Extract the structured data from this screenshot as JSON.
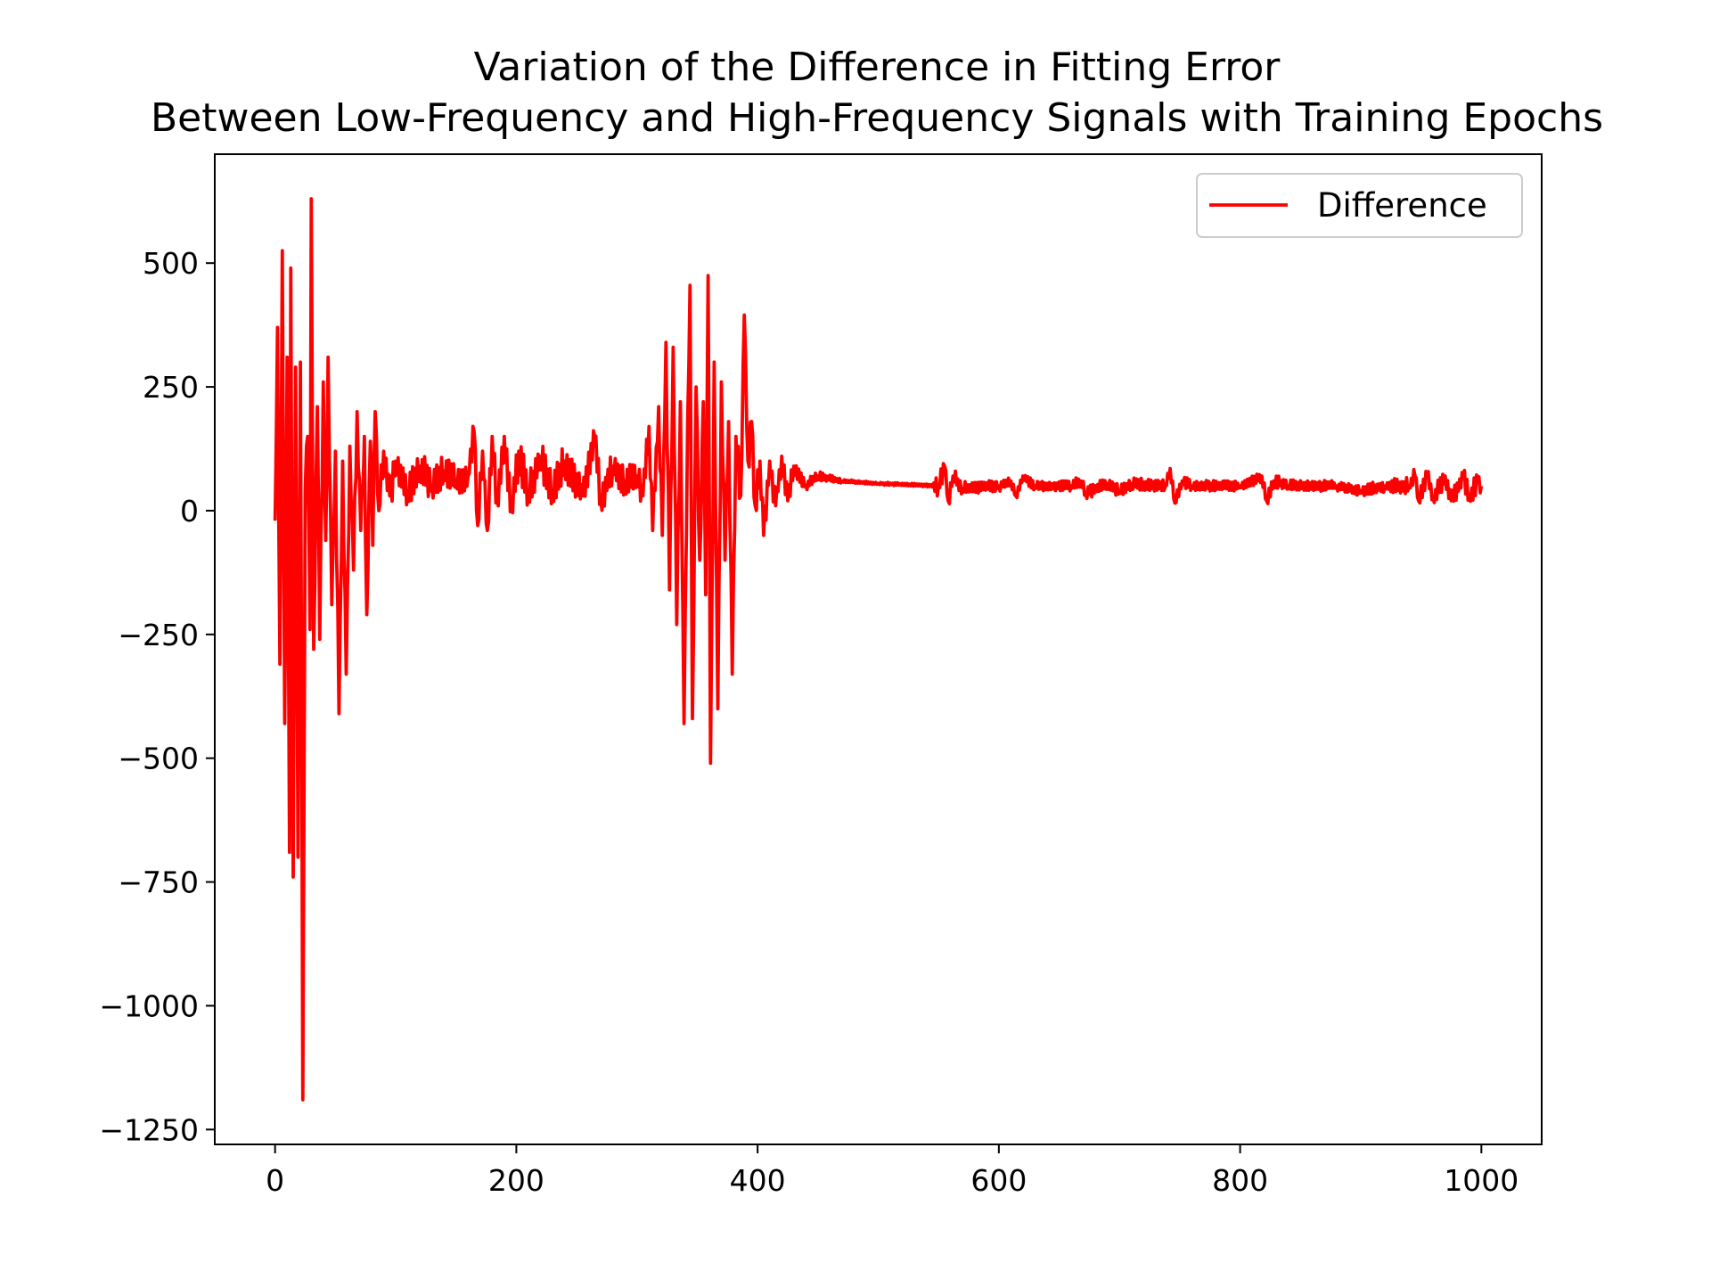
{
  "chart_data": {
    "type": "line",
    "title": [
      "Variation of the Difference in Fitting Error",
      "Between Low-Frequency and High-Frequency Signals with Training Epochs"
    ],
    "xlabel": "",
    "ylabel": "",
    "xlim": [
      -50,
      1050
    ],
    "ylim": [
      -1280,
      720
    ],
    "xticks": [
      0,
      200,
      400,
      600,
      800,
      1000
    ],
    "yticks": [
      -1250,
      -1000,
      -750,
      -500,
      -250,
      0,
      250,
      500
    ],
    "xtick_labels": [
      "0",
      "200",
      "400",
      "600",
      "800",
      "1000"
    ],
    "ytick_labels": [
      "−1250",
      "−1000",
      "−750",
      "−500",
      "−250",
      "0",
      "250",
      "500"
    ],
    "grid": false,
    "legend": {
      "location": "upper right",
      "entries": [
        "Difference"
      ]
    },
    "series": [
      {
        "name": "Difference",
        "color": "#ff0000",
        "key_points": [
          [
            0,
            -20
          ],
          [
            2,
            370
          ],
          [
            4,
            -310
          ],
          [
            6,
            525
          ],
          [
            8,
            -430
          ],
          [
            10,
            310
          ],
          [
            12,
            -690
          ],
          [
            13,
            490
          ],
          [
            15,
            -740
          ],
          [
            17,
            290
          ],
          [
            19,
            -700
          ],
          [
            21,
            300
          ],
          [
            23,
            -1190
          ],
          [
            25,
            40
          ],
          [
            27,
            150
          ],
          [
            29,
            -240
          ],
          [
            30,
            630
          ],
          [
            32,
            -280
          ],
          [
            35,
            210
          ],
          [
            37,
            -260
          ],
          [
            40,
            260
          ],
          [
            42,
            -60
          ],
          [
            44,
            310
          ],
          [
            47,
            -190
          ],
          [
            50,
            120
          ],
          [
            53,
            -410
          ],
          [
            56,
            100
          ],
          [
            59,
            -330
          ],
          [
            62,
            130
          ],
          [
            65,
            -120
          ],
          [
            68,
            200
          ],
          [
            71,
            -40
          ],
          [
            74,
            150
          ],
          [
            76,
            -210
          ],
          [
            79,
            140
          ],
          [
            81,
            -70
          ],
          [
            83,
            200
          ],
          [
            86,
            0
          ],
          [
            90,
            120
          ],
          [
            95,
            30
          ],
          [
            100,
            100
          ],
          [
            110,
            40
          ],
          [
            120,
            90
          ],
          [
            130,
            50
          ],
          [
            140,
            80
          ],
          [
            150,
            60
          ],
          [
            160,
            70
          ],
          [
            165,
            160
          ],
          [
            168,
            -30
          ],
          [
            172,
            120
          ],
          [
            176,
            -40
          ],
          [
            180,
            150
          ],
          [
            184,
            20
          ],
          [
            190,
            150
          ],
          [
            196,
            0
          ],
          [
            202,
            120
          ],
          [
            210,
            30
          ],
          [
            220,
            110
          ],
          [
            230,
            30
          ],
          [
            240,
            100
          ],
          [
            255,
            30
          ],
          [
            265,
            150
          ],
          [
            270,
            20
          ],
          [
            280,
            90
          ],
          [
            290,
            60
          ],
          [
            300,
            70
          ],
          [
            305,
            30
          ],
          [
            310,
            170
          ],
          [
            313,
            -40
          ],
          [
            318,
            210
          ],
          [
            321,
            -50
          ],
          [
            324,
            340
          ],
          [
            327,
            -160
          ],
          [
            330,
            330
          ],
          [
            333,
            -230
          ],
          [
            336,
            220
          ],
          [
            339,
            -430
          ],
          [
            342,
            180
          ],
          [
            344,
            455
          ],
          [
            346,
            -420
          ],
          [
            349,
            250
          ],
          [
            352,
            -100
          ],
          [
            355,
            220
          ],
          [
            357,
            -170
          ],
          [
            359,
            475
          ],
          [
            361,
            -510
          ],
          [
            364,
            300
          ],
          [
            367,
            -400
          ],
          [
            370,
            260
          ],
          [
            373,
            -100
          ],
          [
            376,
            180
          ],
          [
            379,
            -330
          ],
          [
            382,
            150
          ],
          [
            386,
            30
          ],
          [
            389,
            395
          ],
          [
            392,
            100
          ],
          [
            395,
            180
          ],
          [
            398,
            10
          ],
          [
            402,
            100
          ],
          [
            405,
            -50
          ],
          [
            410,
            100
          ],
          [
            415,
            10
          ],
          [
            420,
            110
          ],
          [
            425,
            20
          ],
          [
            430,
            90
          ],
          [
            440,
            50
          ],
          [
            450,
            70
          ],
          [
            470,
            60
          ],
          [
            500,
            55
          ],
          [
            550,
            50
          ],
          [
            555,
            90
          ],
          [
            558,
            20
          ],
          [
            562,
            70
          ],
          [
            570,
            45
          ],
          [
            600,
            50
          ],
          [
            610,
            60
          ],
          [
            614,
            30
          ],
          [
            620,
            70
          ],
          [
            630,
            50
          ],
          [
            660,
            50
          ],
          [
            668,
            60
          ],
          [
            672,
            35
          ],
          [
            690,
            55
          ],
          [
            700,
            40
          ],
          [
            710,
            55
          ],
          [
            738,
            50
          ],
          [
            742,
            85
          ],
          [
            746,
            15
          ],
          [
            752,
            60
          ],
          [
            760,
            50
          ],
          [
            800,
            50
          ],
          [
            818,
            70
          ],
          [
            822,
            20
          ],
          [
            828,
            60
          ],
          [
            840,
            50
          ],
          [
            880,
            50
          ],
          [
            900,
            40
          ],
          [
            920,
            50
          ],
          [
            940,
            50
          ],
          [
            945,
            70
          ],
          [
            948,
            20
          ],
          [
            955,
            75
          ],
          [
            960,
            25
          ],
          [
            970,
            70
          ],
          [
            975,
            20
          ],
          [
            985,
            70
          ],
          [
            990,
            25
          ],
          [
            997,
            60
          ],
          [
            1000,
            50
          ]
        ],
        "noise_envelope": [
          [
            0,
            40
          ],
          [
            100,
            40
          ],
          [
            160,
            30
          ],
          [
            200,
            45
          ],
          [
            300,
            30
          ],
          [
            320,
            40
          ],
          [
            400,
            40
          ],
          [
            440,
            12
          ],
          [
            480,
            3
          ],
          [
            545,
            3
          ],
          [
            550,
            25
          ],
          [
            575,
            12
          ],
          [
            600,
            12
          ],
          [
            640,
            10
          ],
          [
            690,
            14
          ],
          [
            720,
            12
          ],
          [
            760,
            12
          ],
          [
            800,
            10
          ],
          [
            830,
            14
          ],
          [
            890,
            10
          ],
          [
            940,
            18
          ],
          [
            1000,
            22
          ]
        ]
      }
    ]
  }
}
